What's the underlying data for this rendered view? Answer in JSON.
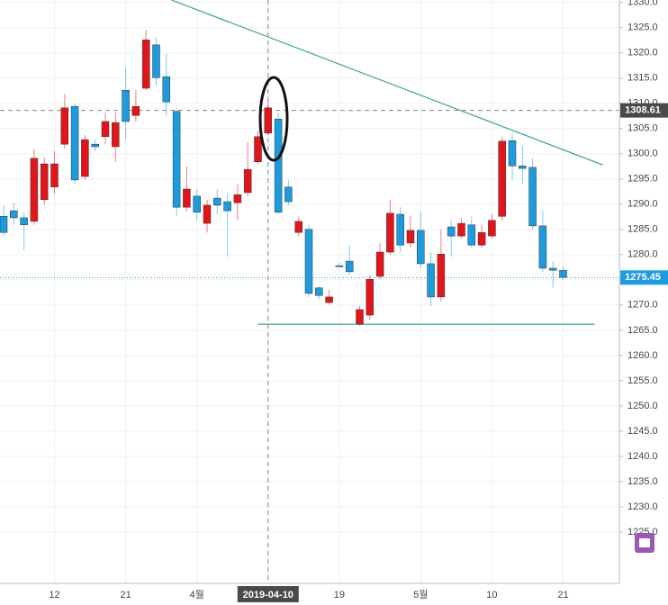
{
  "chart_data": {
    "type": "candlestick",
    "categories": [
      null,
      null,
      null,
      null,
      null,
      "12",
      null,
      null,
      null,
      null,
      null,
      null,
      "21",
      null,
      null,
      null,
      null,
      null,
      null,
      "4월",
      null,
      null,
      null,
      null,
      null,
      null,
      "2019-04-10",
      null,
      null,
      null,
      null,
      null,
      null,
      "19",
      null,
      null,
      null,
      null,
      null,
      null,
      null,
      "5월",
      null,
      null,
      null,
      null,
      null,
      null,
      "10",
      null,
      null,
      null,
      null,
      null,
      null,
      "21"
    ],
    "open": [
      1287.6,
      1288.7,
      1287.3,
      1286.6,
      1290.9,
      1293.4,
      1301.9,
      1309.4,
      1295.5,
      1301.9,
      1303.4,
      1301.4,
      1312.6,
      1307.6,
      1313.0,
      1321.6,
      1315.3,
      1308.4,
      1289.4,
      1291.6,
      1286.2,
      1291.2,
      1290.5,
      1290.3,
      1292.3,
      1298.4,
      1304.1,
      1306.9,
      1293.4,
      1284.4,
      1285.0,
      1273.4,
      1270.5,
      1277.8,
      1278.7,
      1266.2,
      1268.0,
      1275.7,
      1280.5,
      1288.0,
      1282.3,
      1284.8,
      1278.2,
      1271.6,
      1285.5,
      1283.7,
      1285.9,
      1281.9,
      1283.7,
      1287.6,
      1302.6,
      1297.6,
      1297.3,
      1285.7,
      1277.3,
      1276.9
    ],
    "high": [
      1289.8,
      1290.3,
      1288.4,
      1301.0,
      1299.3,
      1300.5,
      1311.8,
      1310.0,
      1303.7,
      1302.8,
      1308.2,
      1308.2,
      1317.1,
      1312.6,
      1324.6,
      1323.0,
      1319.8,
      1309.1,
      1297.5,
      1293.0,
      1290.9,
      1293.0,
      1292.1,
      1293.9,
      1302.3,
      1304.6,
      1310.5,
      1308.2,
      1294.8,
      1287.6,
      1285.9,
      1273.7,
      1273.0,
      1278.4,
      1281.9,
      1269.8,
      1276.0,
      1282.3,
      1290.9,
      1289.4,
      1287.6,
      1288.5,
      1280.5,
      1285.0,
      1286.8,
      1287.3,
      1287.6,
      1285.9,
      1288.0,
      1303.4,
      1304.1,
      1301.6,
      1299.1,
      1288.7,
      1278.7,
      1277.8
    ],
    "low": [
      1283.7,
      1285.9,
      1280.9,
      1285.9,
      1289.8,
      1292.1,
      1301.0,
      1293.9,
      1294.8,
      1300.5,
      1301.9,
      1298.4,
      1302.8,
      1306.4,
      1312.6,
      1313.5,
      1307.6,
      1287.6,
      1288.5,
      1286.8,
      1284.4,
      1288.0,
      1279.6,
      1286.8,
      1291.6,
      1298.0,
      1303.7,
      1288.0,
      1289.8,
      1283.7,
      1271.6,
      1271.2,
      1270.1,
      1277.5,
      1276.0,
      1265.9,
      1267.1,
      1275.1,
      1280.0,
      1280.5,
      1281.4,
      1277.3,
      1269.8,
      1270.7,
      1279.6,
      1283.2,
      1281.4,
      1281.4,
      1283.2,
      1286.8,
      1294.8,
      1293.9,
      1285.0,
      1276.6,
      1273.4,
      1275.1
    ],
    "close": [
      1284.4,
      1287.3,
      1285.9,
      1299.1,
      1298.0,
      1298.0,
      1309.1,
      1294.8,
      1302.8,
      1301.4,
      1306.4,
      1306.2,
      1306.4,
      1309.4,
      1322.6,
      1315.1,
      1310.3,
      1289.4,
      1293.0,
      1288.4,
      1289.8,
      1289.8,
      1288.7,
      1291.9,
      1296.9,
      1303.4,
      1309.1,
      1288.4,
      1290.5,
      1286.6,
      1272.3,
      1271.9,
      1271.6,
      1277.6,
      1276.6,
      1269.1,
      1275.1,
      1280.5,
      1288.2,
      1281.9,
      1284.8,
      1278.2,
      1271.6,
      1280.1,
      1283.7,
      1286.2,
      1281.9,
      1284.4,
      1286.8,
      1302.5,
      1297.6,
      1297.1,
      1285.7,
      1277.3,
      1276.9,
      1275.5
    ],
    "up_color": "#e0161c",
    "down_color": "#1e9bdc",
    "ylim": [
      1214.8,
      1330.5
    ],
    "yticks": [
      {
        "value": 1225,
        "label": "1225.0"
      },
      {
        "value": 1230,
        "label": "1230.0"
      },
      {
        "value": 1235,
        "label": "1235.0"
      },
      {
        "value": 1240,
        "label": "1240.0"
      },
      {
        "value": 1245,
        "label": "1245.0"
      },
      {
        "value": 1250,
        "label": "1250.0"
      },
      {
        "value": 1255,
        "label": "1255.0"
      },
      {
        "value": 1260,
        "label": "1260.0"
      },
      {
        "value": 1265,
        "label": "1265.0"
      },
      {
        "value": 1270,
        "label": "1270.0"
      },
      {
        "value": 1275,
        "label": "1275.0"
      },
      {
        "value": 1280,
        "label": "1280.0"
      },
      {
        "value": 1285,
        "label": "1285.0"
      },
      {
        "value": 1290,
        "label": "1290.0"
      },
      {
        "value": 1295,
        "label": "1295.0"
      },
      {
        "value": 1300,
        "label": "1300.0"
      },
      {
        "value": 1305,
        "label": "1305.0"
      },
      {
        "value": 1310,
        "label": "1310.0"
      },
      {
        "value": 1315,
        "label": "1315.0"
      },
      {
        "value": 1320,
        "label": "1320.0"
      },
      {
        "value": 1325,
        "label": "1325.0"
      },
      {
        "value": 1330,
        "label": "1330.0"
      }
    ],
    "grid": true,
    "last_price": 1275.45,
    "crosshair": {
      "x": 26,
      "y": 1308.61
    },
    "lines": [
      {
        "x": [
          16.5,
          58.9
        ],
        "y": [
          1330.5,
          1297.8
        ],
        "color": "#3aa394"
      },
      {
        "x": [
          25.0,
          58.1
        ],
        "y": [
          1266.2,
          1266.2
        ],
        "color": "#3aa394"
      }
    ]
  }
}
